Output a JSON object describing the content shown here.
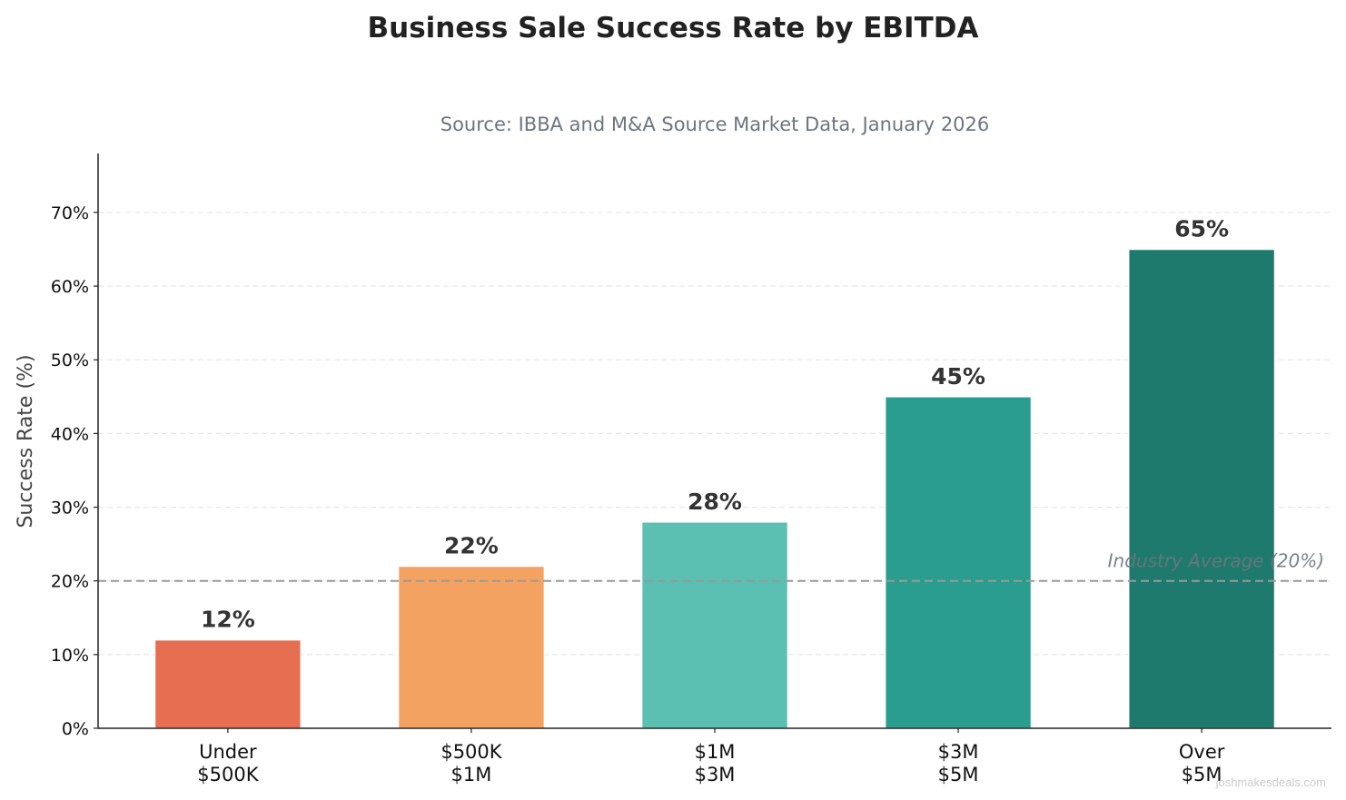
{
  "chart_data": {
    "type": "bar",
    "title": "Business Sale Success Rate by EBITDA",
    "subtitle": "Source: IBBA and M&A Source Market Data, January 2026",
    "xlabel": "",
    "ylabel": "Success Rate (%)",
    "ylim": [
      0,
      78
    ],
    "yticks": [
      0,
      10,
      20,
      30,
      40,
      50,
      60,
      70
    ],
    "ytick_labels": [
      "0%",
      "10%",
      "20%",
      "30%",
      "40%",
      "50%",
      "60%",
      "70%"
    ],
    "grid": "y dashed",
    "categories": [
      [
        "Under",
        "$500K"
      ],
      [
        "$500K",
        "$1M"
      ],
      [
        "$1M",
        "$3M"
      ],
      [
        "$3M",
        "$5M"
      ],
      [
        "Over",
        "$5M"
      ]
    ],
    "values": [
      12,
      22,
      28,
      45,
      65
    ],
    "data_labels": [
      "12%",
      "22%",
      "28%",
      "45%",
      "65%"
    ],
    "colors": [
      "#e76f51",
      "#f4a261",
      "#5bbfb2",
      "#2a9d8f",
      "#1f7a6e"
    ],
    "reference_line": {
      "value": 20,
      "label": "Industry Average (20%)",
      "color": "#999999"
    },
    "watermark": "joshmakesdeals.com"
  }
}
